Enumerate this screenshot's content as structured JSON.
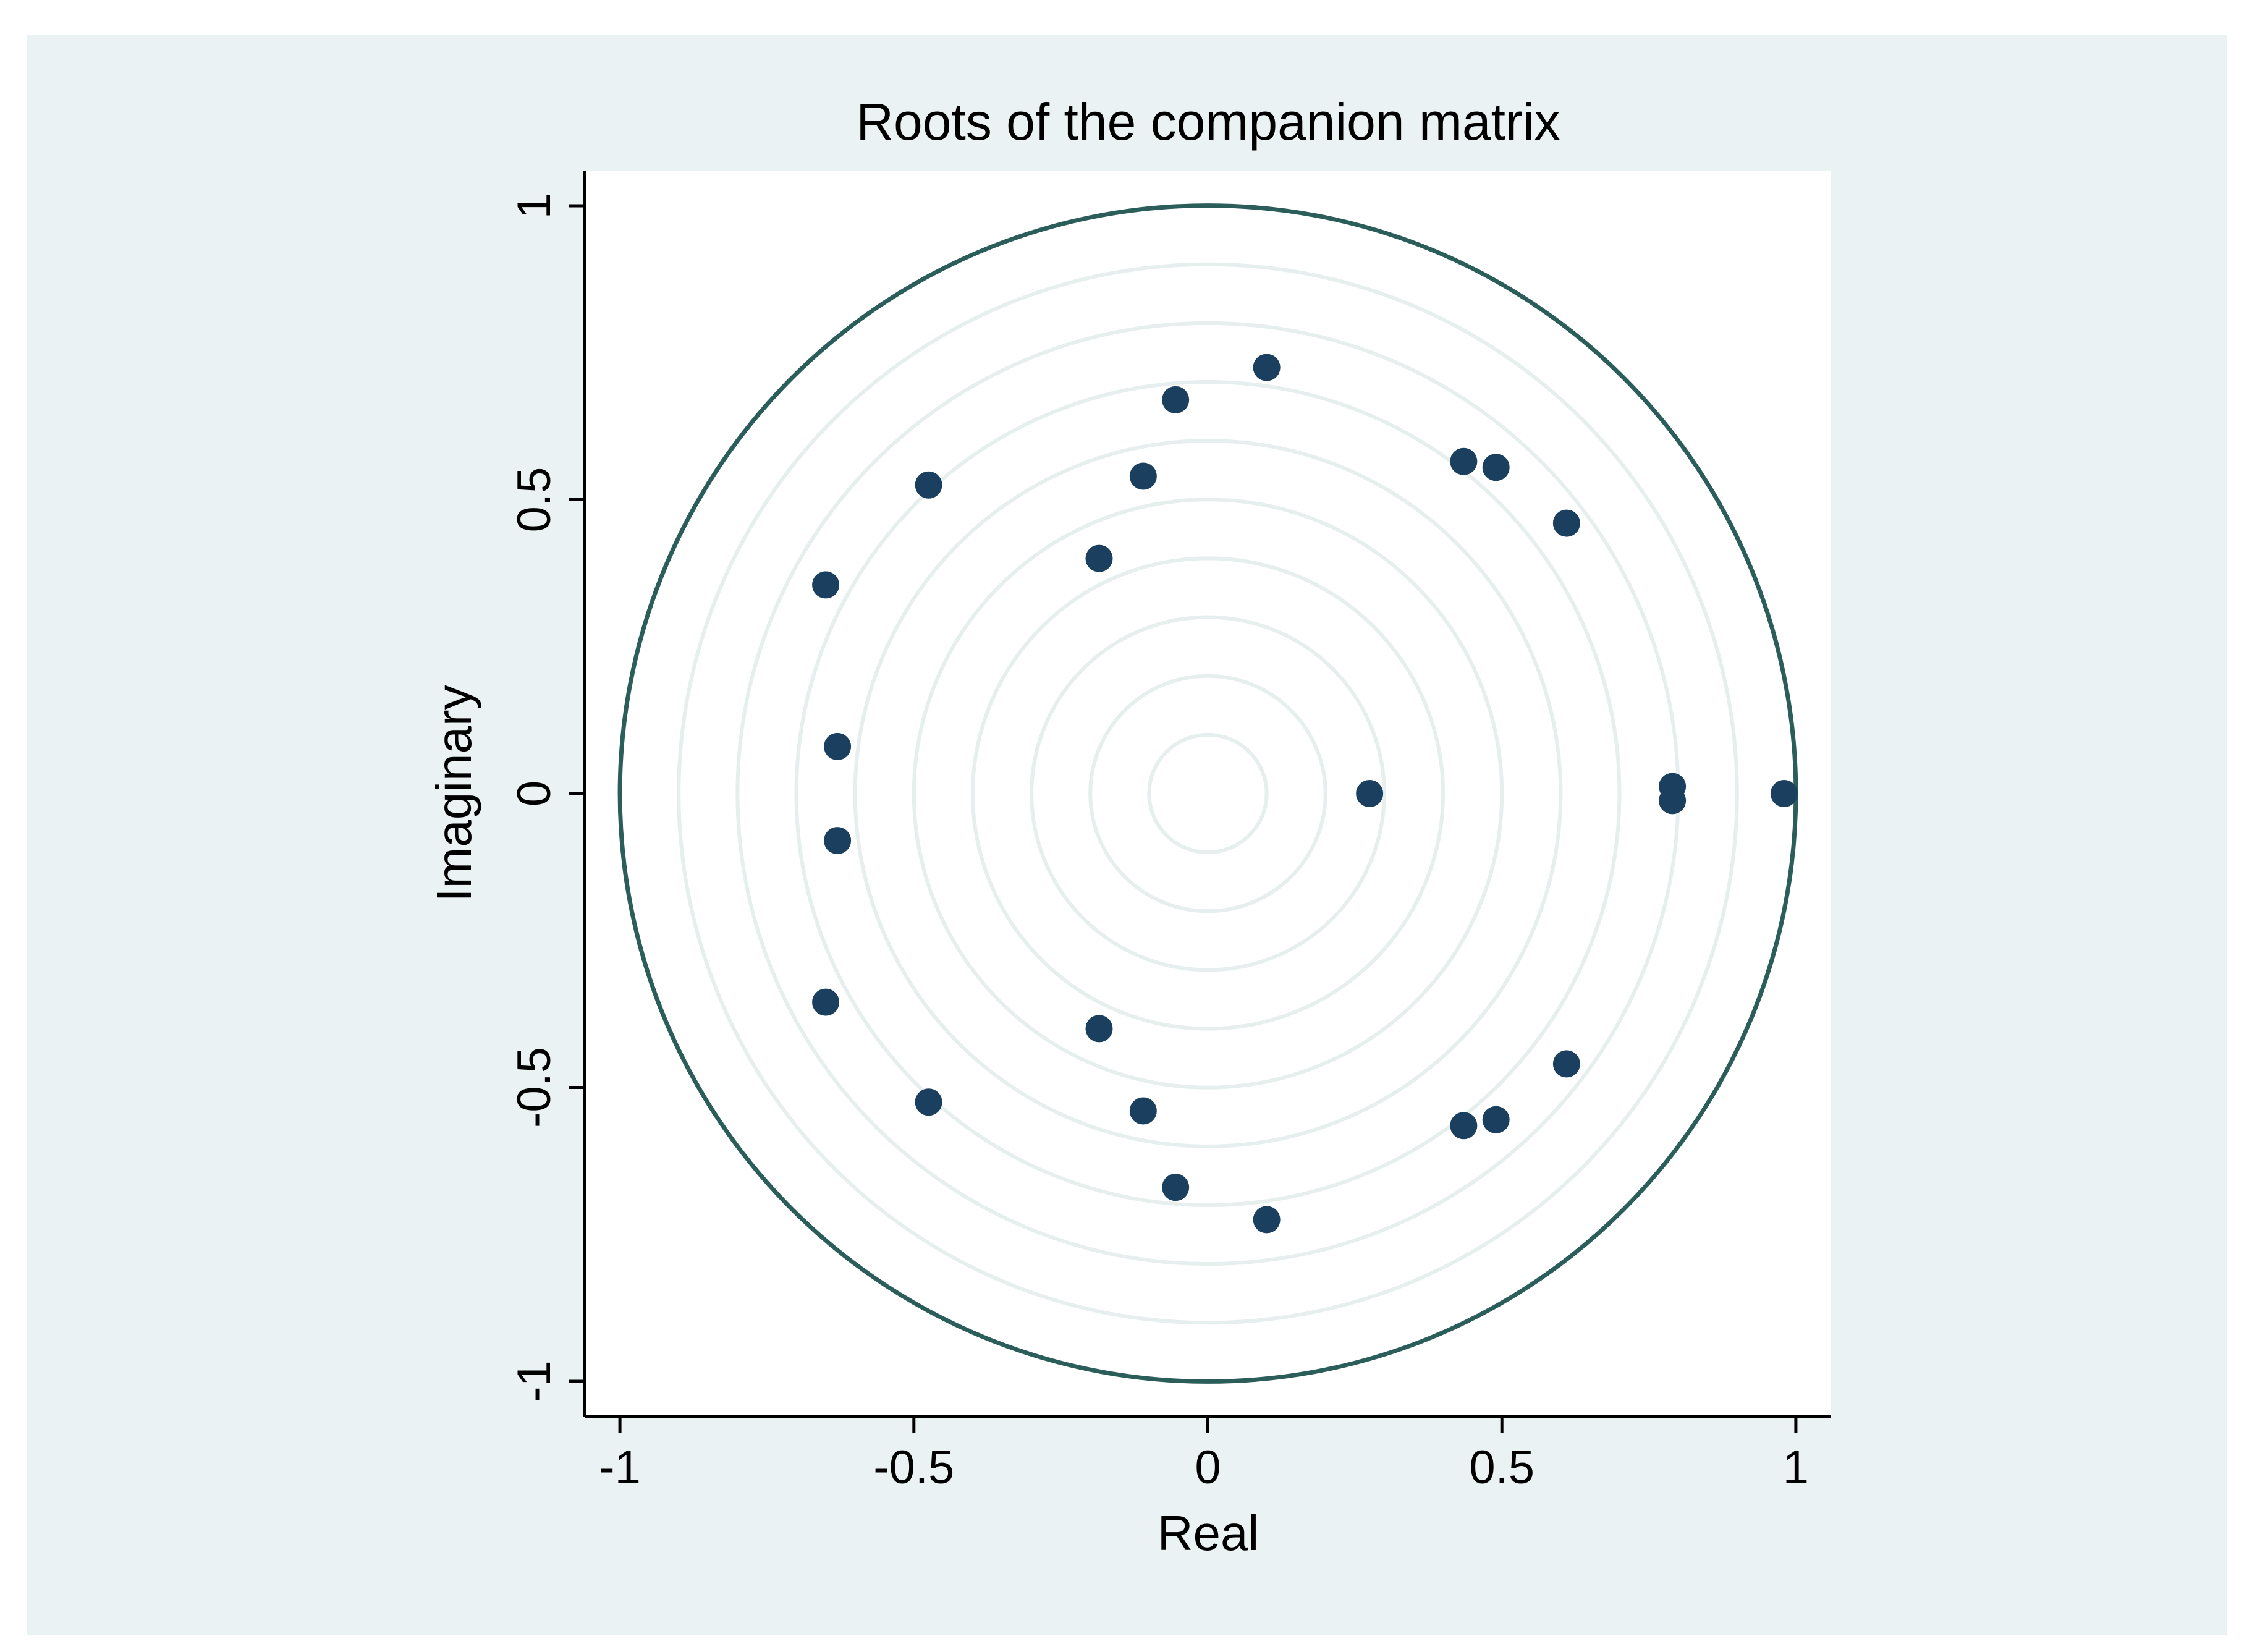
{
  "chart_data": {
    "type": "scatter",
    "title": "Roots of the companion matrix",
    "xlabel": "Real",
    "ylabel": "Imaginary",
    "xlim": [
      -1.06,
      1.06
    ],
    "ylim": [
      -1.06,
      1.06
    ],
    "x_ticks": [
      -1,
      -0.5,
      0,
      0.5,
      1
    ],
    "x_tick_labels": [
      "-1",
      "-0.5",
      "0",
      "0.5",
      "1"
    ],
    "y_ticks": [
      -1,
      -0.5,
      0,
      0.5,
      1
    ],
    "y_tick_labels": [
      "-1",
      "-0.5",
      "0",
      "0.5",
      "1"
    ],
    "grid": false,
    "unit_circle": true,
    "reference_circle_radii": [
      0.1,
      0.2,
      0.3,
      0.4,
      0.5,
      0.6,
      0.7,
      0.8,
      0.9
    ],
    "colors": {
      "outer_background": "#eaf2f3",
      "plot_background": "#ffffff",
      "unit_circle": "#2b5d5b",
      "reference_circles": "#e6eeee",
      "points": "#1b3f5e",
      "axis": "#000000"
    },
    "series": [
      {
        "points": [
          [
            0.98,
            0.0
          ],
          [
            0.79,
            0.012
          ],
          [
            0.79,
            -0.012
          ],
          [
            0.275,
            0.0
          ],
          [
            0.1,
            0.725
          ],
          [
            0.1,
            -0.725
          ],
          [
            -0.055,
            0.67
          ],
          [
            -0.055,
            -0.67
          ],
          [
            0.435,
            0.565
          ],
          [
            0.435,
            -0.565
          ],
          [
            0.49,
            0.555
          ],
          [
            0.49,
            -0.555
          ],
          [
            0.61,
            0.46
          ],
          [
            0.61,
            -0.46
          ],
          [
            -0.11,
            0.54
          ],
          [
            -0.11,
            -0.54
          ],
          [
            -0.185,
            0.4
          ],
          [
            -0.185,
            -0.4
          ],
          [
            -0.475,
            0.525
          ],
          [
            -0.475,
            -0.525
          ],
          [
            -0.65,
            0.355
          ],
          [
            -0.65,
            -0.355
          ],
          [
            -0.63,
            0.08
          ],
          [
            -0.63,
            -0.08
          ]
        ]
      }
    ]
  }
}
